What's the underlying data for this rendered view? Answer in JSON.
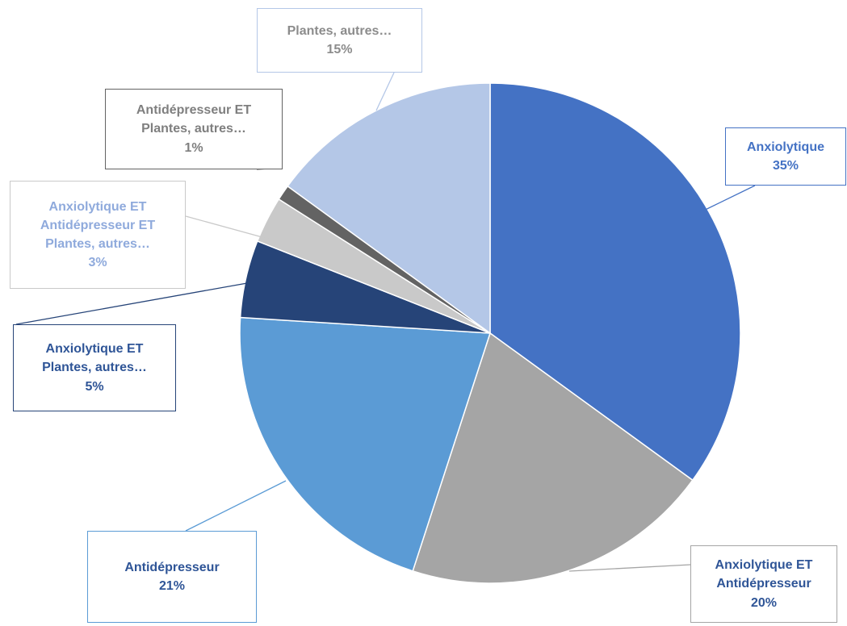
{
  "chart_data": {
    "type": "pie",
    "categories": [
      "Anxiolytique",
      "Anxiolytique ET Antidépresseur",
      "Antidépresseur",
      "Anxiolytique ET Plantes, autres…",
      "Anxiolytique ET Antidépresseur ET Plantes, autres…",
      "Antidépresseur ET Plantes, autres…",
      "Plantes, autres…"
    ],
    "values": [
      35,
      20,
      21,
      5,
      3,
      1,
      15
    ],
    "value_labels": [
      "35%",
      "20%",
      "21%",
      "5%",
      "3%",
      "1%",
      "15%"
    ],
    "colors": [
      "#4472c4",
      "#a5a5a5",
      "#5b9bd5",
      "#264478",
      "#c9c9c9",
      "#636363",
      "#b4c7e7"
    ],
    "label_colors": [
      "#4472c4",
      "#2f5597",
      "#2f5597",
      "#2f5597",
      "#8faadc",
      "#7f7f7f",
      "#8c8c8c"
    ]
  }
}
